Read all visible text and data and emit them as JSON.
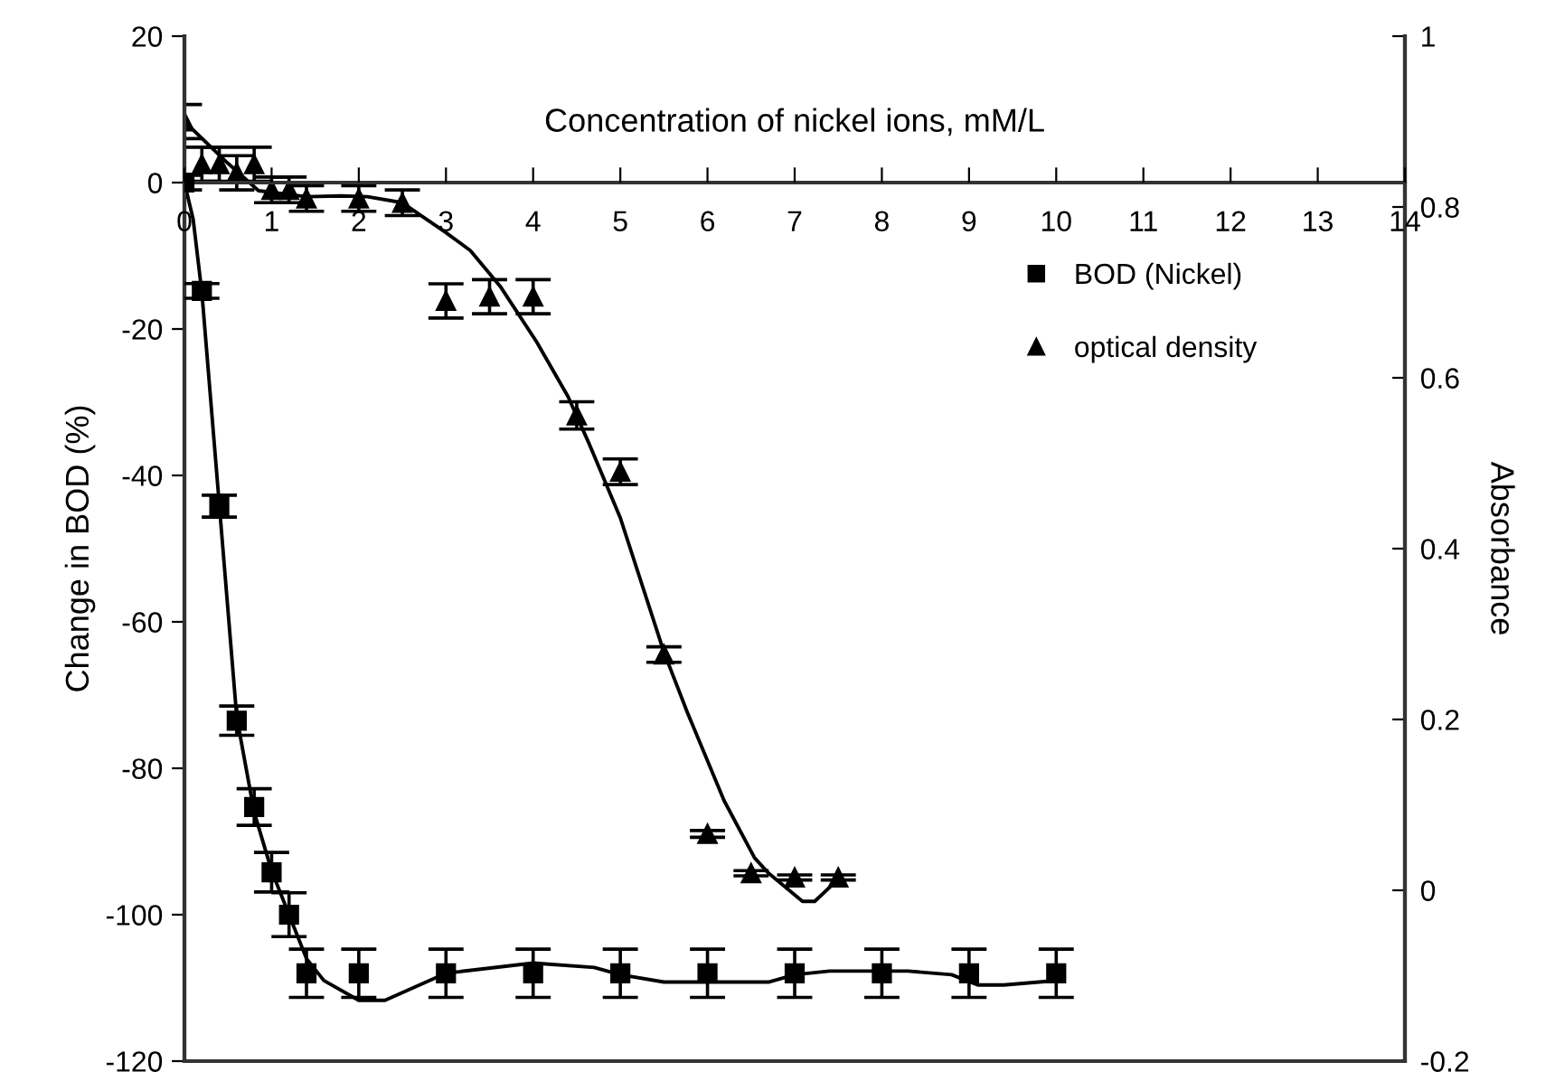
{
  "chart_data": {
    "type": "scatter",
    "xlabel": "Concentration of nickel ions, mM/L",
    "ylabel": "Change in BOD (%)",
    "y2label": "Absorbance",
    "xlim": [
      0,
      14
    ],
    "xticks": [
      0,
      1,
      2,
      3,
      4,
      5,
      6,
      7,
      8,
      9,
      10,
      11,
      12,
      13,
      14
    ],
    "ylim": [
      -120,
      20
    ],
    "yticks": [
      -120,
      -100,
      -80,
      -60,
      -40,
      -20,
      0,
      20
    ],
    "y2lim": [
      -0.2,
      1
    ],
    "y2ticks": [
      -0.2,
      0,
      0.2,
      0.4,
      0.6,
      0.8,
      1
    ],
    "grid": false,
    "legend": "right",
    "series": [
      {
        "name": "BOD (Nickel)",
        "marker": "square",
        "color": "#000000",
        "axis": "y",
        "x": [
          0,
          0.2,
          0.4,
          0.6,
          0.8,
          1.0,
          1.2,
          1.4,
          2,
          3,
          4,
          5,
          6,
          7,
          8,
          9,
          10
        ],
        "values": [
          0,
          -14.8,
          -44.2,
          -73.5,
          -85.3,
          -94.2,
          -100,
          -108,
          -108,
          -108,
          -108,
          -108,
          -108,
          -108,
          -108,
          -108,
          -108
        ],
        "errors": [
          1,
          1,
          1.5,
          2,
          2.5,
          2.7,
          3,
          3.3,
          3.3,
          3.3,
          3.3,
          3.3,
          3.3,
          3.3,
          3.3,
          3.3,
          3.3
        ]
      },
      {
        "name": "optical density",
        "marker": "triangle",
        "color": "#000000",
        "axis": "y2",
        "x": [
          0,
          0.2,
          0.4,
          0.6,
          0.8,
          1.0,
          1.2,
          1.4,
          2,
          2.5,
          3,
          3.5,
          4,
          4.5,
          5,
          5.5,
          6,
          6.5,
          7,
          7.5
        ],
        "values": [
          0.9,
          0.85,
          0.85,
          0.84,
          0.85,
          0.82,
          0.82,
          0.81,
          0.81,
          0.805,
          0.69,
          0.695,
          0.695,
          0.556,
          0.49,
          0.276,
          0.066,
          0.02,
          0.015,
          0.015
        ],
        "errors": [
          0.02,
          0.02,
          0.02,
          0.02,
          0.02,
          0.015,
          0.015,
          0.015,
          0.015,
          0.015,
          0.02,
          0.02,
          0.02,
          0.016,
          0.015,
          0.009,
          0.004,
          0.003,
          0.003,
          0.003
        ]
      },
      {
        "type": "line",
        "marker": "none",
        "line_style": "solid",
        "color": "#000000",
        "axis": "y",
        "x": [
          0,
          0.1,
          0.2,
          0.4,
          0.6,
          0.8,
          1.0,
          1.2,
          1.4,
          1.6,
          2.0,
          2.3,
          3,
          4,
          4.7,
          5,
          5.5,
          6.7,
          7,
          7.4,
          8.3,
          8.8,
          9.1,
          9.4,
          10
        ],
        "values": [
          0,
          -5,
          -15,
          -44,
          -73,
          -86,
          -94,
          -100,
          -106,
          -109,
          -111.7,
          -111.7,
          -108,
          -106.6,
          -107.2,
          -108.2,
          -109.2,
          -109.2,
          -108.2,
          -107.7,
          -107.7,
          -108.2,
          -109.6,
          -109.6,
          -109
        ]
      },
      {
        "type": "line",
        "marker": "none",
        "line_style": "solid",
        "color": "#000000",
        "axis": "y2",
        "x": [
          0,
          0.5,
          0.85,
          1.4,
          1.8,
          2.1,
          2.5,
          3.0,
          3.28,
          3.63,
          4.04,
          4.4,
          4.65,
          5.0,
          5.5,
          5.77,
          6.19,
          6.54,
          6.7,
          7.09,
          7.23,
          7.5
        ],
        "values": [
          0.9,
          0.851,
          0.819,
          0.812,
          0.813,
          0.812,
          0.805,
          0.77,
          0.749,
          0.706,
          0.642,
          0.578,
          0.521,
          0.436,
          0.279,
          0.208,
          0.105,
          0.038,
          0.02,
          -0.013,
          -0.013,
          0.013
        ]
      }
    ]
  }
}
